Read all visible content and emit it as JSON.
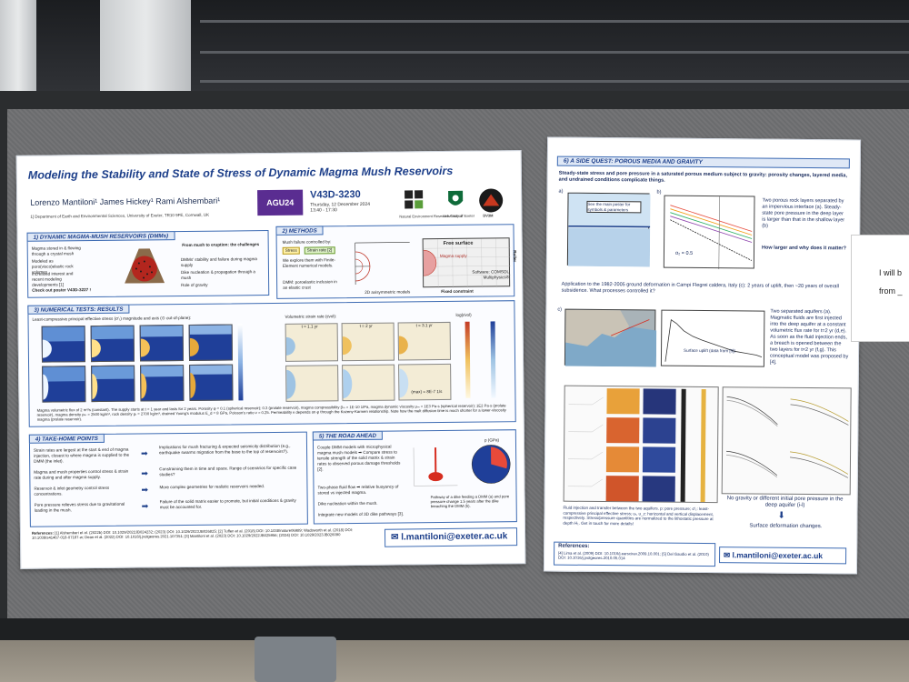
{
  "poster1": {
    "title": "Modeling the Stability and State of Stress of Dynamic Magma Mush Reservoirs",
    "authors": "Lorenzo Mantiloni¹ James Hickey¹ Rami Alshembari¹",
    "affiliation": "1] Department of Earth and Environmental Sciences, University of Exeter, TR10 9FE, Cornwall, UK",
    "badge": "AGU24",
    "session_code": "V43D-3230",
    "session_date": "Thursday, 12 December 2024",
    "session_time": "13:40 - 17:30",
    "logo_caption_nerc": "Natural Environment Research Council",
    "logo_caption_exeter": "University of Exeter",
    "logo_caption_dv3m": "DV3M",
    "sec1": {
      "title": "1) DYNAMIC MAGMA-MUSH RESERVOIRS (DMMs)",
      "bullets": [
        "Magma stored in & flowing through a crystal mush",
        "Modeled as poro(visco)elastic rock volumes",
        "Increased interest and recent modeling developments [1]"
      ],
      "callout": "Check out poster V43D-3227 !",
      "right_head": "From mush to eruption: the challenges",
      "right_bullets": [
        "DMMs' stability and failure during magma supply",
        "Dike nucleation & propagation through a mush",
        "Role of gravity"
      ]
    },
    "sec2": {
      "title": "2) METHODS",
      "line1": "Mush failure controlled by:",
      "tag_stress": "Stress",
      "tag_strain": "Strain rate [2]",
      "line2": "We explore them with Finite-Element numerical models.",
      "line3": "DMM: poroelastic inclusion in an elastic crust",
      "free_surface": "Free surface",
      "magma_supply": "Magma supply",
      "software": "Software: COMSOL Multiphysics®",
      "roller": "Roller",
      "caption1": "2D axisymmetric models",
      "caption2": "Fixed constraint"
    },
    "sec3": {
      "title": "3) NUMERICAL TESTS: RESULTS",
      "left_caption": "Least-compressive principal effective stress (σ'₁) magnitude and axis (⊙ out-of-plane):",
      "mid_caption": "Volumetric strain rate (ε̇vol):",
      "colorbar_label": "log(ε̇vol)",
      "times": [
        "t = 1.1 yr",
        "t = 2 yr",
        "t = 3.1 yr"
      ],
      "max_note": "(max) = 8E-7 1/s",
      "footnote": "Magma volumetric flux of 2 m³/s (constant). The supply starts at t = 1 year and lasts for 2 years. Porosity φ = 0.1 (spherical reservoir); 0.3 (prolate reservoir), magma compressibility βₘ = 1E-10 1/Pa, magma dynamic viscosity μₘ = 1E3 Pa·s (spherical reservoir); 1E2 Pa·s (prolate reservoir), magma density ρₘ = 2500 kg/m³, rock density ρᵣ = 2700 kg/m³, drained Young's modulus E_d = 8 GPa, Poisson's ratio ν = 0.25. Permeability κ depends on φ through the Kozeny-Karmen relationship. Note how the melt diffusion time is much shorter for a lower-viscosity magma (prolate reservoir)."
    },
    "sec4": {
      "title": "4) TAKE-HOME POINTS",
      "left": [
        "Strain rates are largest at the start & end of magma injection, closest to where magma is supplied to the DMM (the inlet).",
        "Magma and mush properties control stress & strain rate during and after magma supply.",
        "Reservoir & inlet geometry control stress concentrations.",
        "Pore pressure relieves stress due to gravitational loading in the mush."
      ],
      "right": [
        "Implications for mush fracturing & expected seismicity distribution (e.g., earthquake swarms migration from the base to the top of reservoirs?).",
        "Constraining them in time and space. Range of scenarios for specific case studies?",
        "More complex geometries for realistic reservoirs needed.",
        "Failure of the solid matrix easier to promote, but initial conditions & gravity must be accounted for."
      ]
    },
    "sec5": {
      "title": "5) THE ROAD AHEAD",
      "bullets": [
        "Couple DMM models with microphysical magma mush models ➡ Compare stress to tensile strength of the solid matrix & strain rates to observed porous damage thresholds [2].",
        "Two-phase fluid flow ➡ relative buoyancy of stored vs injected magma.",
        "Dike nucleation within the mush.",
        "Integrate new models of 3D dike pathways [3]."
      ],
      "fig_caption": "Pathway of a dike feeding a DMM (a) and pore pressure change 1.5 years after the dike breaching the DMM (b).",
      "p_label": "p (GPa)"
    },
    "references_label": "References:",
    "references": "[1] Alshembari et al. (2022b) DOI: 10.1029/2022JB024232; (2023) DOI: 10.1029/2023JB026825; [2] Tuffen et al. (2018) DOI: 10.1038/nature06989; Wadsworth et al. (2018) DOI: 10.1038/s41467-018-07187-w; Dean et al. (2022) DOI: 10.1016/j.jvolgeores.2021.107351; [3] Mantiloni et al. (2023) DOI: 10.1029/2022JB025956; (2024) DOI: 10.1029/2023JB026090",
    "email": "l.mantiloni@exeter.ac.uk"
  },
  "poster2": {
    "title": "6) A SIDE QUEST: POROUS MEDIA AND GRAVITY",
    "subtitle": "Steady-state stress and pore pressure in a saturated porous medium subject to gravity: porosity changes, layered media, and undrained conditions complicate things.",
    "panel_label_a": "a)",
    "panel_label_b": "b)",
    "panel_label_c": "c)",
    "see_main": "See the main poster for symbols & parameters",
    "ab_note": "Two porous rock layers separated by an impervious interface (a). Steady-state pore pressure in the deep layer is larger than that in the shallow layer (b)",
    "question": "How larger and why does it matter?",
    "alpha_label": "α₂ = 0.5",
    "application": "Application to the 1982-2005 ground deformation in Campi Flegrei caldera, Italy (c): 2 years of uplift, then ~20 years of overall subsidence. What processes controlled it?",
    "uplift_label": "Surface uplift (data from [5])",
    "c_note": "Two separated aquifers (a). Magmatic fluids are first injected into the deep aquifer at a constant volumetric flux rate for t=2 yr (d,e). As soon as the fluid injection ends, a breach is opened between the two layers for t=2 yr (f,g). This conceptual model was proposed by [4].",
    "gravity_note": "No gravity or different initial pore pressure in the deep aquifer (i-l)",
    "surface_def": "Surface deformation changes.",
    "fig_caption": "Fluid injection and transfer between the two aquifers. p: pore pressure; σ'₁: least-compressive principal effective stress; uᵣ, u_z: horizontal and vertical displacement, respectively. Stress/pressure quantities are normalized to the lithostatic pressure at depth H₁. Get in touch for more details!",
    "references_label": "References:",
    "references": "[4] Lima et al. (2009) DOI: 10.1016/j.earscirev.2009.10.001; [5] Del Gaudio et al. (2010) DOI: 10.1016/j.jvolgeores.2010.05.014",
    "email": "l.mantiloni@exeter.ac.uk"
  },
  "card": {
    "line1": "I will b",
    "line2": "from _"
  },
  "colors": {
    "poster_blue": "#1d3f8a",
    "section_border": "#3d6bb3",
    "board_gray": "#6f7072"
  }
}
